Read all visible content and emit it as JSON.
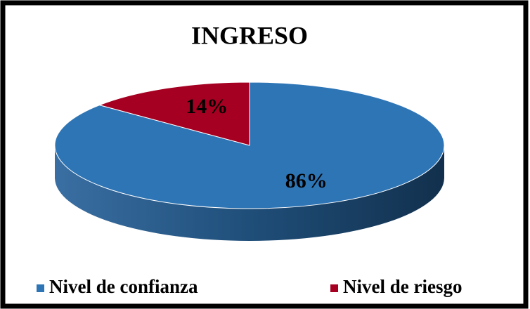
{
  "chart_data": {
    "type": "pie",
    "title": "INGRESO",
    "categories": [
      "Nivel de confianza",
      "Nivel de riesgo"
    ],
    "values": [
      86,
      14
    ],
    "value_labels": [
      "86%",
      "14%"
    ],
    "colors": [
      "#2e75b6",
      "#a50021"
    ],
    "legend": "bottom"
  }
}
